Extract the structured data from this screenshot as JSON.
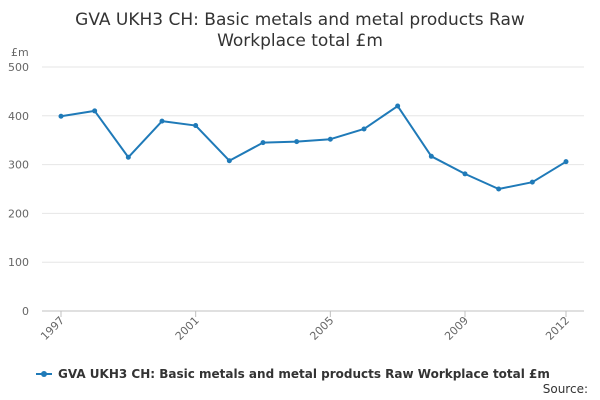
{
  "chart_data": {
    "type": "line",
    "title_lines": [
      "GVA UKH3 CH: Basic metals and metal products Raw",
      "Workplace total £m"
    ],
    "ylabel": "£m",
    "xlabel": "",
    "x": [
      1997,
      1998,
      1999,
      2000,
      2001,
      2002,
      2003,
      2004,
      2005,
      2006,
      2007,
      2008,
      2009,
      2010,
      2011,
      2012
    ],
    "x_tick_labels": [
      "1997",
      "2001",
      "2005",
      "2009",
      "2012"
    ],
    "y_ticks": [
      0,
      100,
      200,
      300,
      400,
      500
    ],
    "ylim": [
      0,
      500
    ],
    "grid": true,
    "legend_position": "bottom",
    "series": [
      {
        "name": "GVA UKH3 CH: Basic metals and metal products Raw Workplace total £m",
        "color": "#1f7ab8",
        "values": [
          399,
          410,
          315,
          389,
          380,
          308,
          345,
          347,
          352,
          373,
          420,
          317,
          281,
          250,
          264,
          306
        ]
      }
    ]
  },
  "footer": {
    "source_label": "Source:"
  }
}
